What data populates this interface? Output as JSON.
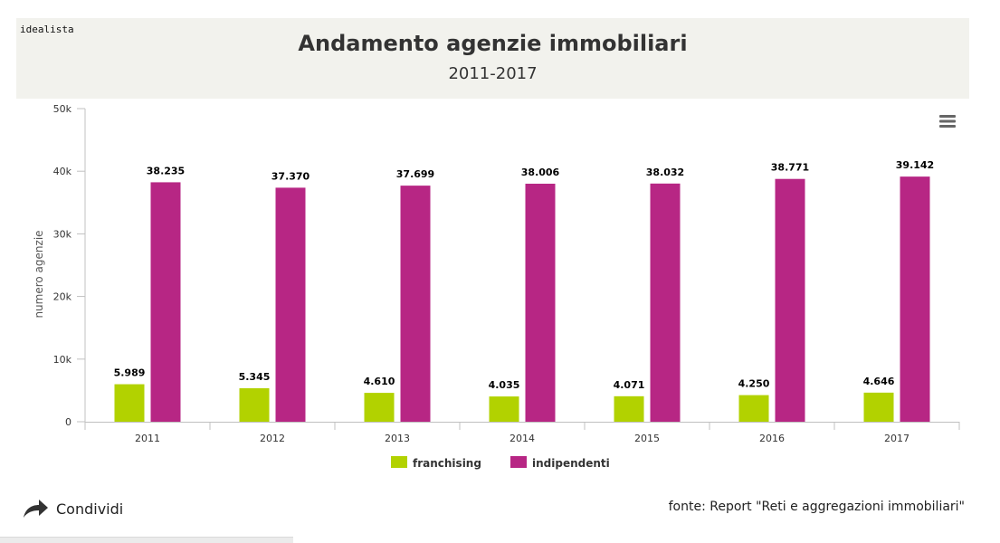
{
  "brand": "idealista",
  "header": {
    "title": "Andamento agenzie immobiliari",
    "subtitle": "2011-2017"
  },
  "chart_data": {
    "type": "bar",
    "title": "Andamento agenzie immobiliari",
    "subtitle": "2011-2017",
    "xlabel": "",
    "ylabel": "numero agenzie",
    "categories": [
      "2011",
      "2012",
      "2013",
      "2014",
      "2015",
      "2016",
      "2017"
    ],
    "ylim": [
      0,
      50000
    ],
    "yticks": [
      0,
      10000,
      20000,
      30000,
      40000,
      50000
    ],
    "ytick_labels": [
      "0",
      "10k",
      "20k",
      "30k",
      "40k",
      "50k"
    ],
    "grid": false,
    "legend_position": "bottom-center",
    "series": [
      {
        "name": "franchising",
        "color": "#b2d200",
        "values": [
          5989,
          5345,
          4610,
          4035,
          4071,
          4250,
          4646
        ],
        "labels": [
          "5.989",
          "5.345",
          "4.610",
          "4.035",
          "4.071",
          "4.250",
          "4.646"
        ]
      },
      {
        "name": "indipendenti",
        "color": "#b72684",
        "values": [
          38235,
          37370,
          37699,
          38006,
          38032,
          38771,
          39142
        ],
        "labels": [
          "38.235",
          "37.370",
          "37.699",
          "38.006",
          "38.032",
          "38.771",
          "39.142"
        ]
      }
    ]
  },
  "footer": {
    "share_label": "Condividi",
    "source": "fonte: Report \"Reti e aggregazioni immobiliari\""
  },
  "icons": {
    "menu": "hamburger-menu-icon",
    "share": "share-arrow-icon"
  }
}
